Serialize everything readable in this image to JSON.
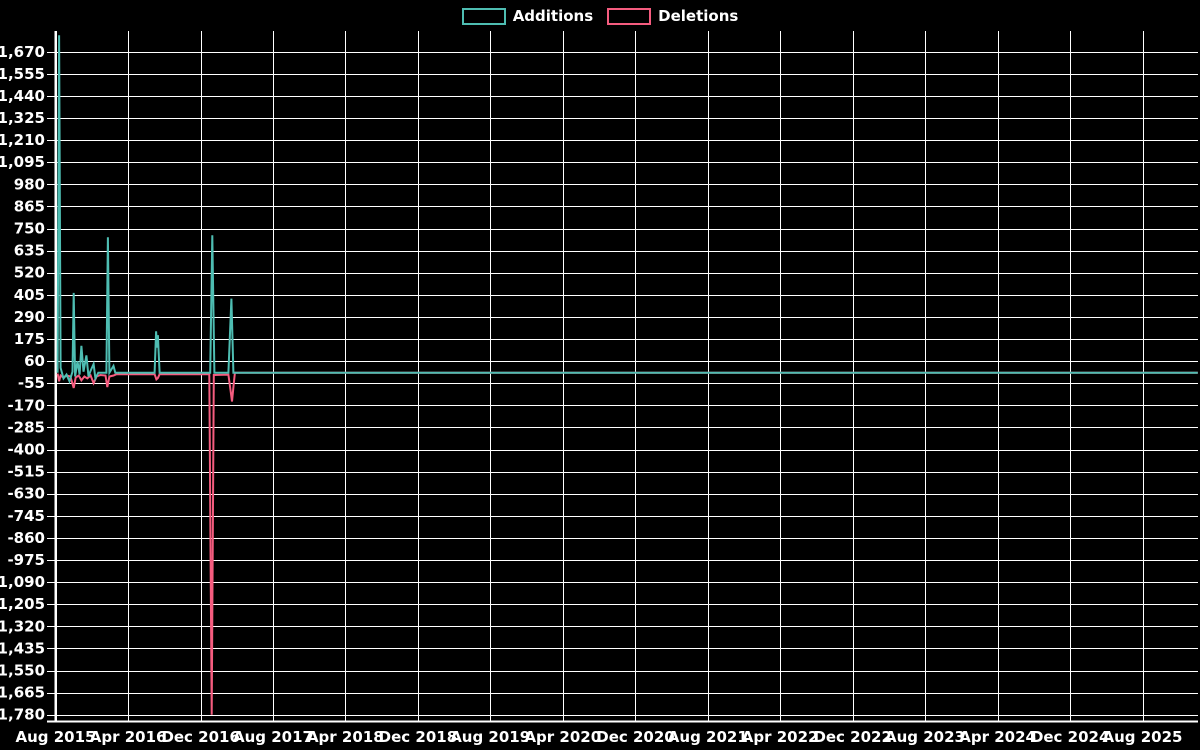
{
  "page": {
    "background": "#000000",
    "text_color": "#ffffff",
    "grid_color": "#ffffff"
  },
  "legend": {
    "items": [
      {
        "label": "Additions",
        "color": "#4ebdb2"
      },
      {
        "label": "Deletions",
        "color": "#f55c7f"
      }
    ]
  },
  "chart_data": {
    "type": "line",
    "title": "",
    "xlabel": "",
    "ylabel": "",
    "grid": true,
    "legend_position": "top-center",
    "x_axis": {
      "ticks": [
        {
          "label": "Aug 2015",
          "date": "2015-08-01"
        },
        {
          "label": "Apr 2016",
          "date": "2016-04-01"
        },
        {
          "label": "Dec 2016",
          "date": "2016-12-01"
        },
        {
          "label": "Aug 2017",
          "date": "2017-08-01"
        },
        {
          "label": "Apr 2018",
          "date": "2018-04-01"
        },
        {
          "label": "Dec 2018",
          "date": "2018-12-01"
        },
        {
          "label": "Aug 2019",
          "date": "2019-08-01"
        },
        {
          "label": "Apr 2020",
          "date": "2020-04-01"
        },
        {
          "label": "Dec 2020",
          "date": "2020-12-01"
        },
        {
          "label": "Aug 2021",
          "date": "2021-08-01"
        },
        {
          "label": "Apr 2022",
          "date": "2022-04-01"
        },
        {
          "label": "Dec 2022",
          "date": "2022-12-01"
        },
        {
          "label": "Aug 2023",
          "date": "2023-08-01"
        },
        {
          "label": "Apr 2024",
          "date": "2024-04-01"
        },
        {
          "label": "Dec 2024",
          "date": "2024-12-01"
        },
        {
          "label": "Aug 2025",
          "date": "2025-08-01"
        }
      ],
      "end_date": "2026-02-03"
    },
    "y_axis": {
      "tick_step": 115,
      "tick_values": [
        1670,
        1555,
        1440,
        1325,
        1210,
        1095,
        980,
        865,
        750,
        635,
        520,
        405,
        290,
        175,
        60,
        -55,
        -170,
        -285,
        -400,
        -515,
        -630,
        -745,
        -860,
        -975,
        -1090,
        -1205,
        -1320,
        -1435,
        -1550,
        -1665,
        -1780
      ],
      "domain": [
        -1818,
        1778
      ]
    },
    "series": [
      {
        "name": "Additions",
        "color": "#4ebdb2",
        "points": [
          [
            "2015-08-08",
            0
          ],
          [
            "2015-08-13",
            1756
          ],
          [
            "2015-08-18",
            25
          ],
          [
            "2015-08-28",
            -30
          ],
          [
            "2015-09-07",
            -10
          ],
          [
            "2015-09-17",
            -45
          ],
          [
            "2015-09-27",
            5
          ],
          [
            "2015-10-01",
            415
          ],
          [
            "2015-10-06",
            -20
          ],
          [
            "2015-10-14",
            60
          ],
          [
            "2015-10-21",
            -10
          ],
          [
            "2015-10-27",
            140
          ],
          [
            "2015-11-03",
            5
          ],
          [
            "2015-11-13",
            90
          ],
          [
            "2015-11-20",
            -20
          ],
          [
            "2015-11-27",
            10
          ],
          [
            "2015-12-07",
            45
          ],
          [
            "2015-12-13",
            -30
          ],
          [
            "2015-12-23",
            0
          ],
          [
            "2016-01-19",
            0
          ],
          [
            "2016-01-24",
            705
          ],
          [
            "2016-01-29",
            0
          ],
          [
            "2016-02-12",
            35
          ],
          [
            "2016-02-18",
            0
          ],
          [
            "2016-06-29",
            0
          ],
          [
            "2016-07-04",
            215
          ],
          [
            "2016-07-07",
            130
          ],
          [
            "2016-07-10",
            195
          ],
          [
            "2016-07-16",
            0
          ],
          [
            "2017-01-02",
            0
          ],
          [
            "2017-01-09",
            715
          ],
          [
            "2017-01-16",
            0
          ],
          [
            "2017-03-04",
            0
          ],
          [
            "2017-03-14",
            385
          ],
          [
            "2017-03-21",
            0
          ],
          [
            "2026-02-03",
            0
          ]
        ]
      },
      {
        "name": "Deletions",
        "color": "#f55c7f",
        "points": [
          [
            "2015-08-08",
            -5
          ],
          [
            "2015-08-13",
            -45
          ],
          [
            "2015-08-18",
            -15
          ],
          [
            "2015-08-28",
            -25
          ],
          [
            "2015-09-07",
            -15
          ],
          [
            "2015-09-20",
            -20
          ],
          [
            "2015-10-01",
            -80
          ],
          [
            "2015-10-08",
            -25
          ],
          [
            "2015-10-18",
            -15
          ],
          [
            "2015-10-27",
            -40
          ],
          [
            "2015-11-06",
            -20
          ],
          [
            "2015-11-16",
            -30
          ],
          [
            "2015-11-27",
            -15
          ],
          [
            "2015-12-07",
            -55
          ],
          [
            "2015-12-17",
            -20
          ],
          [
            "2015-12-30",
            -12
          ],
          [
            "2016-01-16",
            -15
          ],
          [
            "2016-01-22",
            -75
          ],
          [
            "2016-01-29",
            -20
          ],
          [
            "2016-02-12",
            -15
          ],
          [
            "2016-02-22",
            -8
          ],
          [
            "2016-06-29",
            -8
          ],
          [
            "2016-07-05",
            -35
          ],
          [
            "2016-07-10",
            -28
          ],
          [
            "2016-07-16",
            -8
          ],
          [
            "2016-12-30",
            -8
          ],
          [
            "2017-01-07",
            -1780
          ],
          [
            "2017-01-14",
            -12
          ],
          [
            "2017-03-04",
            -10
          ],
          [
            "2017-03-11",
            -90
          ],
          [
            "2017-03-16",
            -150
          ],
          [
            "2017-03-22",
            -60
          ],
          [
            "2017-03-26",
            0
          ],
          [
            "2026-02-03",
            0
          ]
        ]
      }
    ]
  }
}
